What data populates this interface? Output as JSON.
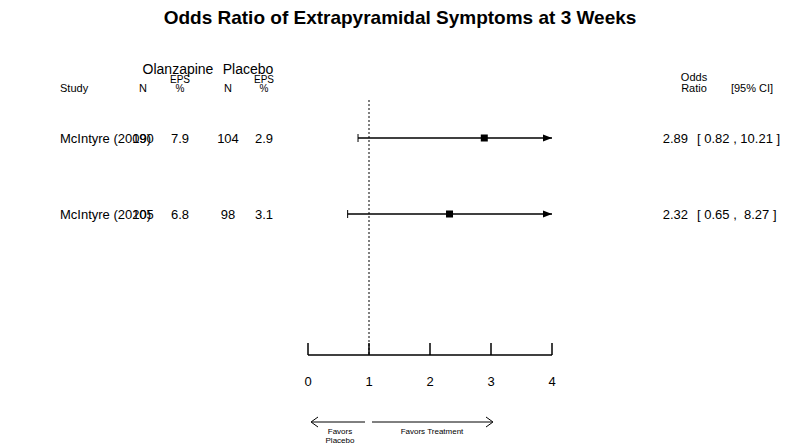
{
  "chart_data": {
    "type": "forest",
    "title": "Odds Ratio of Extrapyramidal Symptoms at 3 Weeks",
    "columns": {
      "study": "Study",
      "group1": "Olanzapine",
      "group2": "Placebo",
      "n": "N",
      "eps": "EPS %",
      "effect": "Odds Ratio",
      "ci": "[95% CI]"
    },
    "categories": [
      "McIntyre (2009)",
      "McIntyre (2010)"
    ],
    "group1_n": [
      190,
      205
    ],
    "group1_eps": [
      7.9,
      6.8
    ],
    "group2_n": [
      104,
      98
    ],
    "group2_eps": [
      2.9,
      3.1
    ],
    "values": [
      2.89,
      2.32
    ],
    "ci_low": [
      0.82,
      0.65
    ],
    "ci_high": [
      10.21,
      8.27
    ],
    "value_labels": [
      "2.89",
      "2.32"
    ],
    "ci_labels": [
      "[ 0.82 , 10.21 ]",
      "[ 0.65 ,  8.27 ]"
    ],
    "reference_line": 1,
    "xlim": [
      0,
      4
    ],
    "xticks": [
      0,
      1,
      2,
      3,
      4
    ],
    "annotations": [
      "Favors Placebo",
      "Favors Treatment"
    ]
  }
}
